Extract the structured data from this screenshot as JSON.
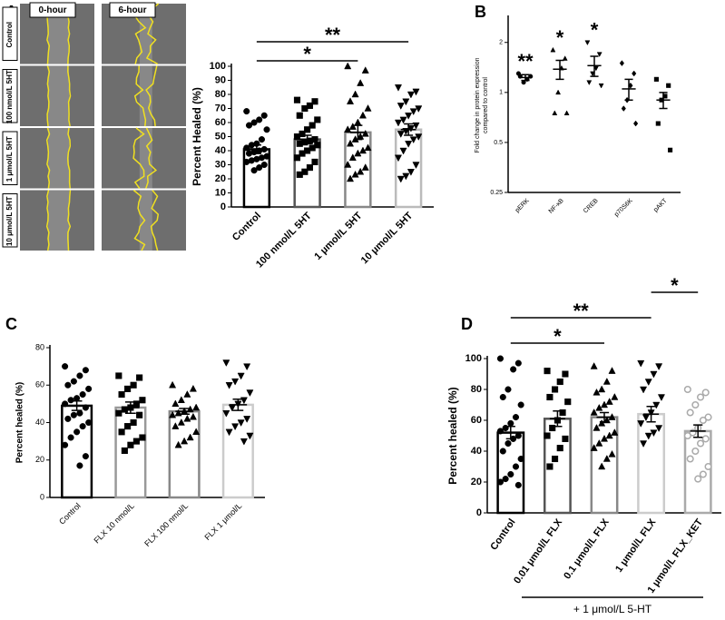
{
  "panel_labels": [
    "A",
    "B",
    "C",
    "D"
  ],
  "micrograph": {
    "columns": [
      "0-hour",
      "6-hour"
    ],
    "rows": [
      "Control",
      "100 nmol/L 5HT",
      "1 μmol/L 5HT",
      "10 μmol/L 5HT"
    ]
  },
  "chart_data": [
    {
      "type": "bar",
      "ylabel": "Percent Healed (%)",
      "categories": [
        "Control",
        "100 nmol/L 5HT",
        "1 μmol/L 5HT",
        "10 μmol/L 5HT"
      ],
      "values": [
        41,
        48,
        53,
        55
      ],
      "errors": [
        3,
        3,
        5,
        4
      ],
      "colors": [
        "#000000",
        "#555555",
        "#888888",
        "#bbbbbb"
      ],
      "markers": [
        "circle",
        "square",
        "triangle",
        "triangle-down"
      ],
      "marker_colors": [
        "#000000",
        "#000000",
        "#000000",
        "#000000"
      ],
      "points": [
        [
          68,
          65,
          62,
          60,
          58,
          55,
          48,
          45,
          44,
          42,
          41,
          40,
          39,
          38,
          36,
          35,
          34,
          33,
          32,
          30,
          28,
          26
        ],
        [
          76,
          75,
          72,
          70,
          65,
          62,
          58,
          55,
          52,
          50,
          48,
          47,
          46,
          45,
          44,
          42,
          40,
          38,
          35,
          32,
          28,
          25,
          23
        ],
        [
          100,
          97,
          88,
          80,
          75,
          70,
          65,
          60,
          57,
          55,
          52,
          50,
          48,
          45,
          42,
          40,
          38,
          35,
          30,
          28,
          25,
          23,
          20
        ],
        [
          85,
          82,
          80,
          75,
          72,
          70,
          68,
          65,
          62,
          60,
          58,
          56,
          54,
          52,
          50,
          48,
          45,
          40,
          35,
          30,
          25,
          22,
          20
        ]
      ],
      "ylim": [
        0,
        100
      ],
      "yticks": [
        0,
        10,
        20,
        30,
        40,
        50,
        60,
        70,
        80,
        90,
        100
      ],
      "annotation_color": "#8c8c8c",
      "significance": [
        {
          "from": "Control",
          "to": "1 μmol/L 5HT",
          "label": "*"
        },
        {
          "from": "Control",
          "to": "10 μmol/L 5HT",
          "label": "**"
        }
      ]
    },
    {
      "type": "dot",
      "log_scale": true,
      "ylabel": [
        "Fold change in protein expression",
        "compared to control"
      ],
      "categories": [
        "pERK",
        "NF-κB",
        "CREB",
        "p70S6K",
        "pAKT"
      ],
      "values": [
        1.23,
        1.38,
        1.45,
        1.05,
        0.9
      ],
      "errors": [
        0.05,
        0.18,
        0.2,
        0.15,
        0.1
      ],
      "markers": [
        "circle",
        "triangle",
        "triangle-down",
        "diamond",
        "square"
      ],
      "marker_colors": [
        "#000000",
        "#000000",
        "#000000",
        "#000000",
        "#000000"
      ],
      "points": [
        [
          1.3,
          1.25,
          1.2,
          1.15,
          1.25
        ],
        [
          1.8,
          1.6,
          1.4,
          1.0,
          0.75,
          0.75
        ],
        [
          2.0,
          1.7,
          1.4,
          1.3,
          1.15,
          1.1
        ],
        [
          1.5,
          1.3,
          1.1,
          0.9,
          0.8,
          0.65
        ],
        [
          1.2,
          1.1,
          0.95,
          0.9,
          0.65,
          0.45
        ]
      ],
      "ylim": [
        0.25,
        2.8
      ],
      "yticks": [
        0.25,
        0.5,
        1,
        2
      ],
      "annotation_color": "#8c8c8c",
      "significance": [
        {
          "from": "pERK",
          "label": "**"
        },
        {
          "from": "NF-κB",
          "label": "*"
        },
        {
          "from": "CREB",
          "label": "*"
        }
      ]
    },
    {
      "type": "bar",
      "ylabel": "Percent healed (%)",
      "categories": [
        "Control",
        "FLX 10 nmol/L",
        "FLX 100 nmol/L",
        "FLX 1 μmol/L"
      ],
      "values": [
        49,
        48,
        46,
        49.5
      ],
      "errors": [
        2.5,
        3,
        1.5,
        3
      ],
      "colors": [
        "#000000",
        "#999999",
        "#888888",
        "#cccccc"
      ],
      "markers": [
        "circle",
        "square",
        "triangle",
        "triangle-down"
      ],
      "marker_colors": [
        "#000000",
        "#000000",
        "#000000",
        "#000000"
      ],
      "points": [
        [
          70,
          68,
          65,
          62,
          60,
          58,
          55,
          53,
          52,
          50,
          48,
          45,
          44,
          42,
          40,
          38,
          35,
          32,
          28,
          22,
          17
        ],
        [
          65,
          64,
          60,
          58,
          55,
          52,
          50,
          48,
          47,
          45,
          44,
          40,
          38,
          35,
          32,
          30,
          28,
          25
        ],
        [
          60,
          58,
          55,
          52,
          50,
          48,
          47,
          46,
          45,
          44,
          43,
          42,
          40,
          38,
          35,
          32,
          30,
          28
        ],
        [
          72,
          70,
          65,
          62,
          60,
          56,
          52,
          50,
          48,
          45,
          42,
          40,
          38,
          35,
          33,
          30
        ]
      ],
      "ylim": [
        0,
        80
      ],
      "yticks": [
        0,
        20,
        40,
        60,
        80
      ]
    },
    {
      "type": "bar",
      "ylabel": "Percent healed (%)",
      "categories": [
        "Control",
        "0.01 μmol/L FLX",
        "0.1 μmol/L FLX",
        "1 μmol/L FLX",
        "1 μmol/L FLX_KET"
      ],
      "values": [
        52,
        61,
        62,
        64,
        53
      ],
      "errors": [
        4,
        5,
        3,
        5,
        4
      ],
      "colors": [
        "#000000",
        "#555555",
        "#888888",
        "#cccccc",
        "#aaaaaa"
      ],
      "markers": [
        "circle",
        "square",
        "triangle",
        "triangle-down",
        "circle"
      ],
      "marker_colors": [
        "#000000",
        "#000000",
        "#000000",
        "#000000",
        "#aaaaaa"
      ],
      "marker_open": [
        false,
        false,
        false,
        false,
        true
      ],
      "points": [
        [
          100,
          97,
          93,
          80,
          75,
          70,
          62,
          58,
          55,
          53,
          50,
          48,
          45,
          40,
          35,
          30,
          25,
          22,
          20,
          18
        ],
        [
          92,
          90,
          85,
          80,
          75,
          72,
          65,
          60,
          55,
          50,
          48,
          42,
          35,
          30
        ],
        [
          95,
          92,
          85,
          80,
          78,
          75,
          72,
          70,
          68,
          65,
          62,
          60,
          58,
          55,
          52,
          50,
          48,
          45,
          42,
          38,
          35,
          30
        ],
        [
          97,
          95,
          90,
          85,
          80,
          75,
          70,
          65,
          62,
          58,
          55,
          52,
          50,
          45
        ],
        [
          80,
          78,
          75,
          70,
          65,
          62,
          60,
          55,
          52,
          50,
          48,
          45,
          40,
          35,
          30,
          25,
          22
        ]
      ],
      "ylim": [
        0,
        100
      ],
      "yticks": [
        0,
        20,
        40,
        60,
        80,
        100
      ],
      "annotation_color": "#8c8c8c",
      "significance": [
        {
          "from": "Control",
          "to": "0.1 μmol/L FLX",
          "label": "*"
        },
        {
          "from": "Control",
          "to": "1 μmol/L FLX",
          "label": "**"
        },
        {
          "from": "1 μmol/L FLX",
          "to": "1 μmol/L FLX_KET",
          "label": "*"
        }
      ],
      "group_label": "+ 1 μmol/L 5-HT"
    }
  ]
}
